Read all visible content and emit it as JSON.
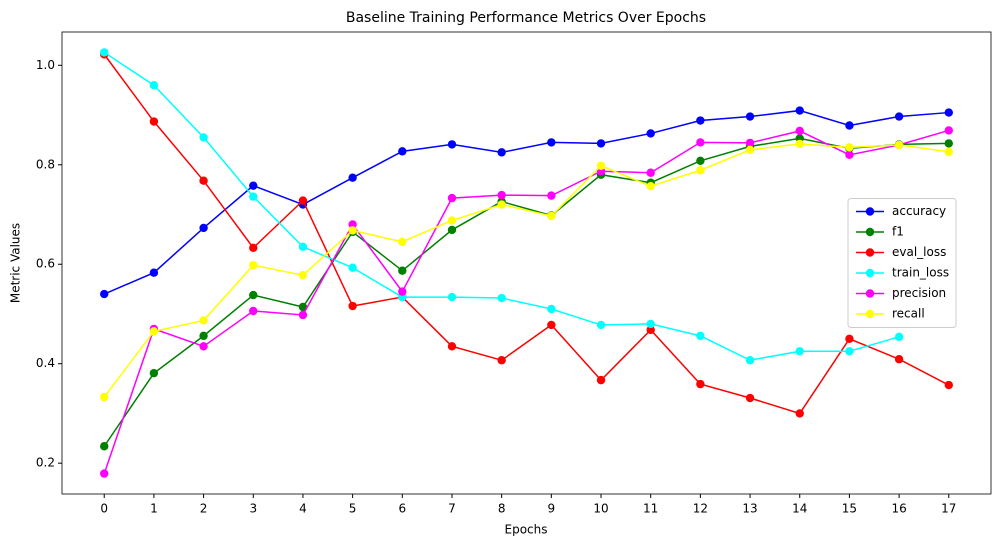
{
  "chart_data": {
    "type": "line",
    "title": "Baseline Training Performance Metrics Over Epochs",
    "x_label": "Epochs",
    "y_label": "Metric Values",
    "x": [
      0,
      1,
      2,
      3,
      4,
      5,
      6,
      7,
      8,
      9,
      10,
      11,
      12,
      13,
      14,
      15,
      16,
      17
    ],
    "xlim": [
      -0.85,
      17.85
    ],
    "xticks": [
      0,
      1,
      2,
      3,
      4,
      5,
      6,
      7,
      8,
      9,
      10,
      11,
      12,
      13,
      14,
      15,
      16,
      17
    ],
    "ylim": [
      0.138,
      1.067
    ],
    "yticks": [
      {
        "value": 0.2,
        "label": "0.2"
      },
      {
        "value": 0.4,
        "label": "0.4"
      },
      {
        "value": 0.6,
        "label": "0.6"
      },
      {
        "value": 0.8,
        "label": "0.8"
      },
      {
        "value": 1.0,
        "label": "1.0"
      }
    ],
    "legend": "center right",
    "series": [
      {
        "name": "accuracy",
        "color": "#0000ff",
        "values": [
          0.54,
          0.583,
          0.673,
          0.758,
          0.72,
          0.774,
          0.827,
          0.841,
          0.825,
          0.845,
          0.843,
          0.863,
          0.889,
          0.897,
          0.909,
          0.879,
          0.897,
          0.905
        ]
      },
      {
        "name": "f1",
        "color": "#008000",
        "values": [
          0.234,
          0.381,
          0.456,
          0.538,
          0.514,
          0.665,
          0.587,
          0.669,
          0.726,
          0.698,
          0.78,
          0.764,
          0.808,
          0.837,
          0.853,
          0.833,
          0.841,
          0.843
        ]
      },
      {
        "name": "eval_loss",
        "color": "#ff0000",
        "values": [
          1.022,
          0.887,
          0.768,
          0.633,
          0.728,
          0.516,
          0.534,
          0.435,
          0.407,
          0.478,
          0.367,
          0.468,
          0.359,
          0.331,
          0.3,
          0.45,
          0.409,
          0.357
        ]
      },
      {
        "name": "train_loss",
        "color": "#00ffff",
        "values": [
          1.026,
          0.96,
          0.855,
          0.736,
          0.635,
          0.593,
          0.534,
          0.534,
          0.532,
          0.51,
          0.478,
          0.48,
          0.456,
          0.407,
          0.425,
          0.425,
          0.454,
          null
        ]
      },
      {
        "name": "precision",
        "color": "#ff00ff",
        "values": [
          0.179,
          0.47,
          0.435,
          0.506,
          0.498,
          0.68,
          0.545,
          0.733,
          0.739,
          0.738,
          0.787,
          0.784,
          0.845,
          0.844,
          0.868,
          0.82,
          0.84,
          0.869
        ]
      },
      {
        "name": "recall",
        "color": "#ffff00",
        "values": [
          0.333,
          0.465,
          0.487,
          0.598,
          0.578,
          0.668,
          0.645,
          0.688,
          0.72,
          0.697,
          0.798,
          0.757,
          0.789,
          0.83,
          0.842,
          0.835,
          0.84,
          0.826
        ]
      }
    ]
  }
}
